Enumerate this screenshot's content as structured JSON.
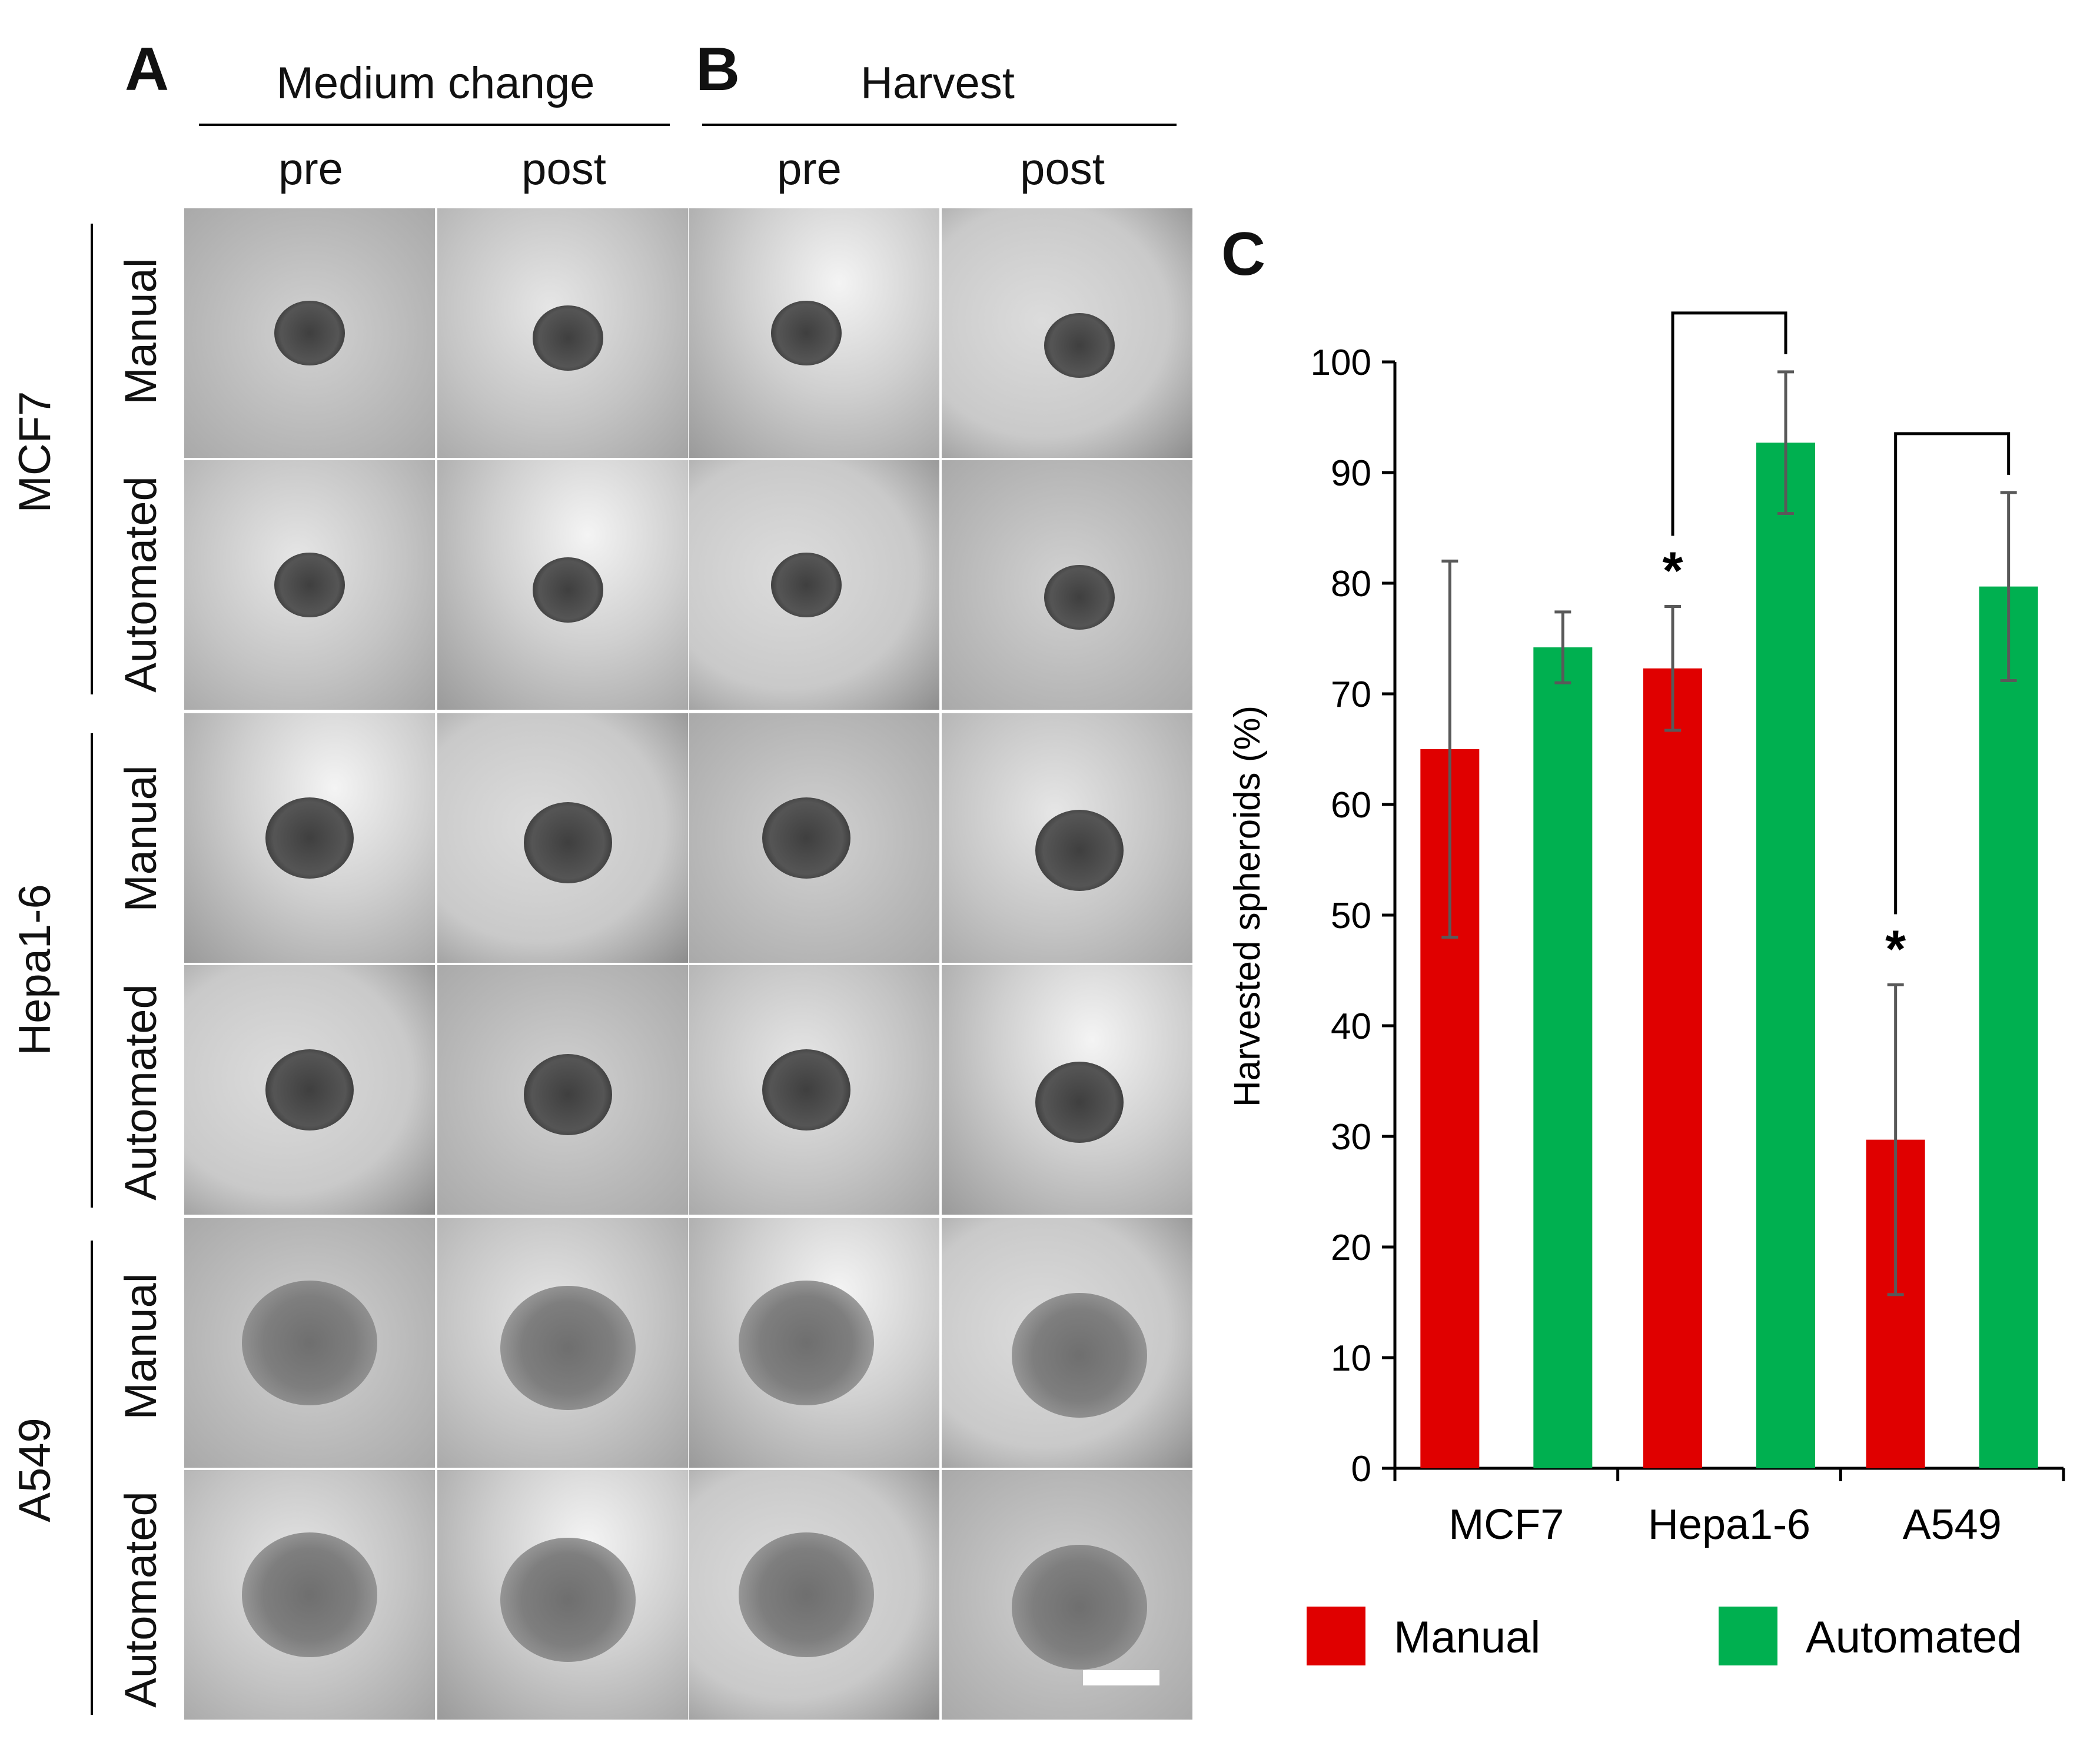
{
  "panelA": {
    "letter": "A",
    "header": "Medium change",
    "columns": [
      "pre",
      "post"
    ]
  },
  "panelB": {
    "letter": "B",
    "header": "Harvest",
    "columns": [
      "pre",
      "post"
    ]
  },
  "cell_lines": [
    {
      "name": "MCF7",
      "rows": [
        "Manual",
        "Automated"
      ]
    },
    {
      "name": "Hepa1-6",
      "rows": [
        "Manual",
        "Automated"
      ]
    },
    {
      "name": "A549",
      "rows": [
        "Manual",
        "Automated"
      ]
    }
  ],
  "panelC": {
    "letter": "C"
  },
  "colors": {
    "manual": "#E00000",
    "automated": "#00B050",
    "errorbar": "#595959"
  },
  "chart_data": {
    "type": "bar",
    "title": "",
    "xlabel": "",
    "ylabel": "Harvested spheroids (%)",
    "ylim": [
      0,
      100
    ],
    "yticks": [
      "0",
      "10",
      "20",
      "30",
      "40",
      "50",
      "60",
      "70",
      "80",
      "90",
      "100"
    ],
    "categories": [
      "MCF7",
      "Hepa1-6",
      "A549"
    ],
    "series": [
      {
        "name": "Manual",
        "values": [
          65,
          72.3,
          29.7
        ],
        "errors": [
          17,
          5.6,
          14
        ]
      },
      {
        "name": "Automated",
        "values": [
          74.2,
          92.7,
          79.7
        ],
        "errors": [
          3.2,
          6.4,
          8.5
        ]
      }
    ],
    "significance_marks": [
      {
        "category": "Hepa1-6",
        "series": "Manual",
        "label": "*"
      },
      {
        "category": "A549",
        "series": "Manual",
        "label": "*"
      }
    ],
    "comparison_brackets": [
      {
        "category": "Hepa1-6",
        "from": "Manual",
        "to": "Automated"
      },
      {
        "category": "A549",
        "from": "Manual",
        "to": "Automated"
      }
    ],
    "legend": {
      "entries": [
        "Manual",
        "Automated"
      ],
      "placement": "bottom"
    }
  }
}
